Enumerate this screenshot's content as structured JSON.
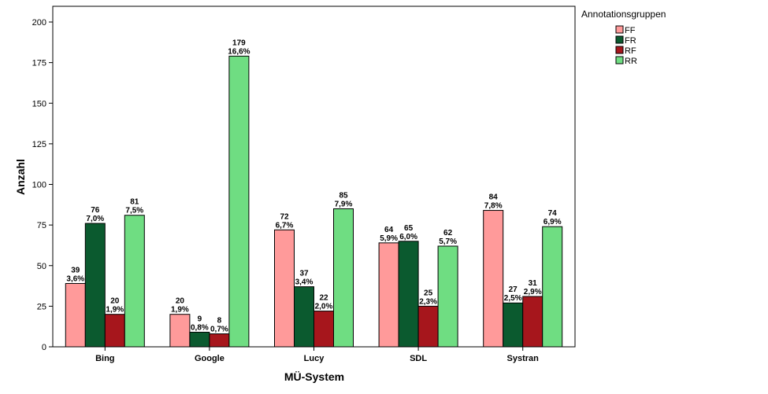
{
  "chart_data": {
    "type": "bar",
    "xlabel": "MÜ-System",
    "ylabel": "Anzahl",
    "ylim": [
      0,
      200
    ],
    "yticks": [
      "0",
      "25",
      "50",
      "75",
      "100",
      "125",
      "150",
      "175",
      "200"
    ],
    "categories": [
      "Bing",
      "Google",
      "Lucy",
      "SDL",
      "Systran"
    ],
    "legend_title": "Annotationsgruppen",
    "legend_position": "top-right",
    "grid": false,
    "series": [
      {
        "name": "FF",
        "color": "#ff9a9a",
        "values": [
          39,
          20,
          72,
          64,
          84
        ],
        "labels": [
          "3,6%",
          "1,9%",
          "6,7%",
          "5,9%",
          "7,8%"
        ]
      },
      {
        "name": "FR",
        "color": "#0b5a2f",
        "values": [
          76,
          9,
          37,
          65,
          27
        ],
        "labels": [
          "7,0%",
          "0,8%",
          "3,4%",
          "6,0%",
          "2,5%"
        ]
      },
      {
        "name": "RF",
        "color": "#a6161c",
        "values": [
          20,
          8,
          22,
          25,
          31
        ],
        "labels": [
          "1,9%",
          "0,7%",
          "2,0%",
          "2,3%",
          "2,9%"
        ]
      },
      {
        "name": "RR",
        "color": "#6fdd82",
        "values": [
          81,
          179,
          85,
          62,
          74
        ],
        "labels": [
          "7,5%",
          "16,6%",
          "7,9%",
          "5,7%",
          "6,9%"
        ]
      }
    ]
  }
}
